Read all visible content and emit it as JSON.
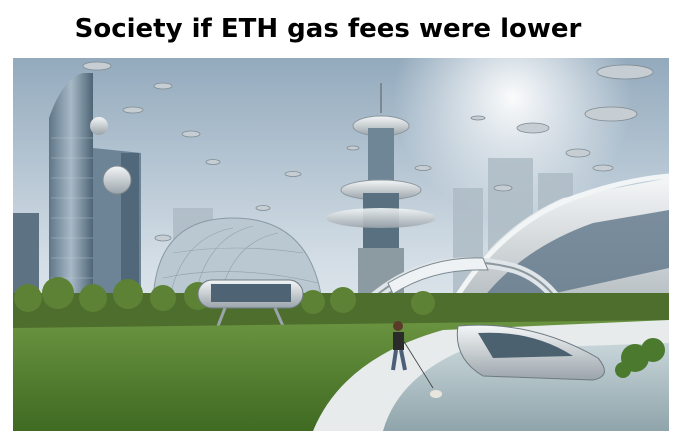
{
  "meme": {
    "caption": "Society if ETH gas fees were lower",
    "image_subject": "futuristic-utopian-city",
    "colors": {
      "sky_top": "#9fb4c6",
      "sky_bottom": "#e8eef2",
      "grass": "#4f7a2c",
      "water": "#b9c9cf",
      "metal": "#c9d0d4"
    }
  }
}
